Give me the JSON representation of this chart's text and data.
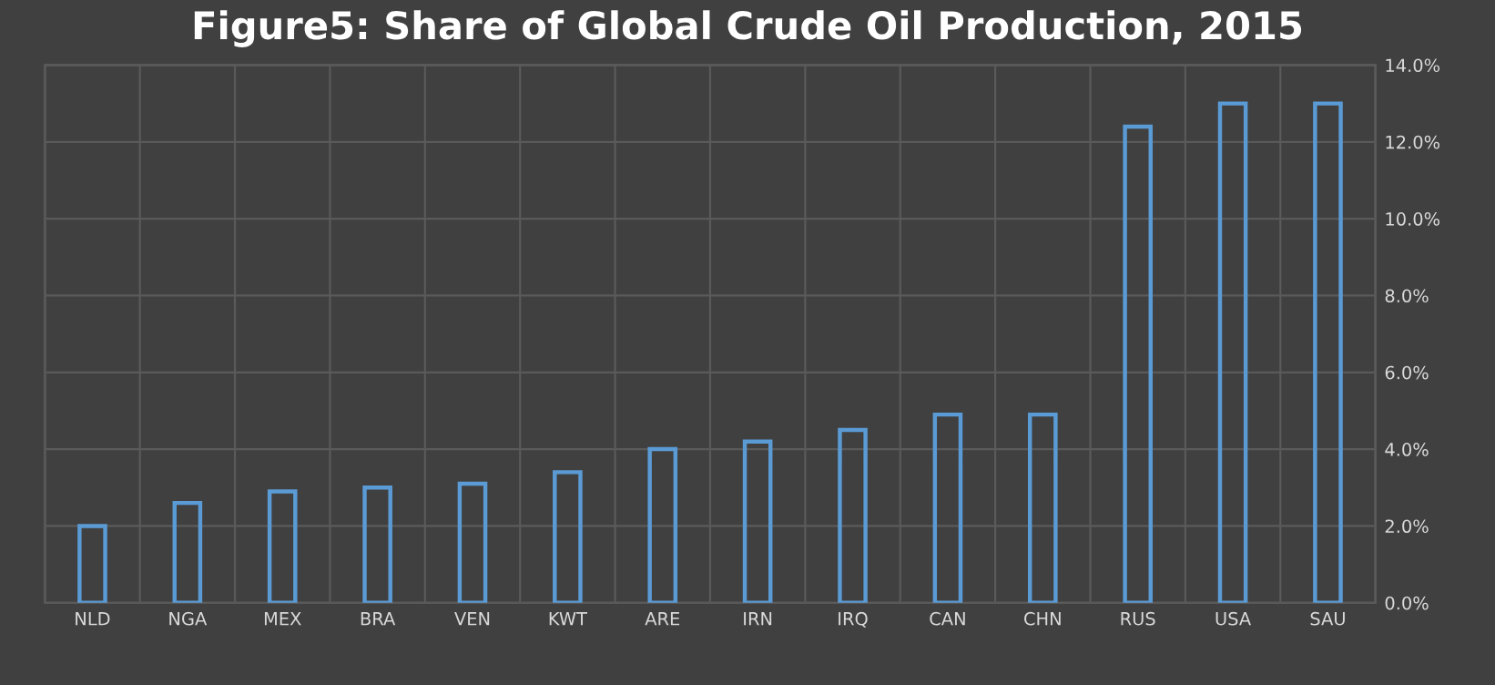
{
  "chart_data": {
    "type": "bar",
    "title": "Figure5: Share of Global Crude Oil Production, 2015",
    "categories": [
      "NLD",
      "NGA",
      "MEX",
      "BRA",
      "VEN",
      "KWT",
      "ARE",
      "IRN",
      "IRQ",
      "CAN",
      "CHN",
      "RUS",
      "USA",
      "SAU"
    ],
    "series": [
      {
        "color": "#5b9bd5",
        "values": [
          2.0,
          2.6,
          2.9,
          3.0,
          3.1,
          3.4,
          4.0,
          4.2,
          4.5,
          4.9,
          4.9,
          12.4,
          13.0,
          13.0
        ],
        "axis": "y2"
      }
    ],
    "y2lim": [
      0,
      14
    ],
    "y2ticks": [
      {
        "value": 0,
        "label": "0.0%"
      },
      {
        "value": 2,
        "label": "2.0%"
      },
      {
        "value": 4,
        "label": "4.0%"
      },
      {
        "value": 6,
        "label": "6.0%"
      },
      {
        "value": 8,
        "label": "8.0%"
      },
      {
        "value": 10,
        "label": "10.0%"
      },
      {
        "value": 12,
        "label": "12.0%"
      },
      {
        "value": 14,
        "label": "14.0%"
      }
    ],
    "grid": true,
    "legend": false
  }
}
